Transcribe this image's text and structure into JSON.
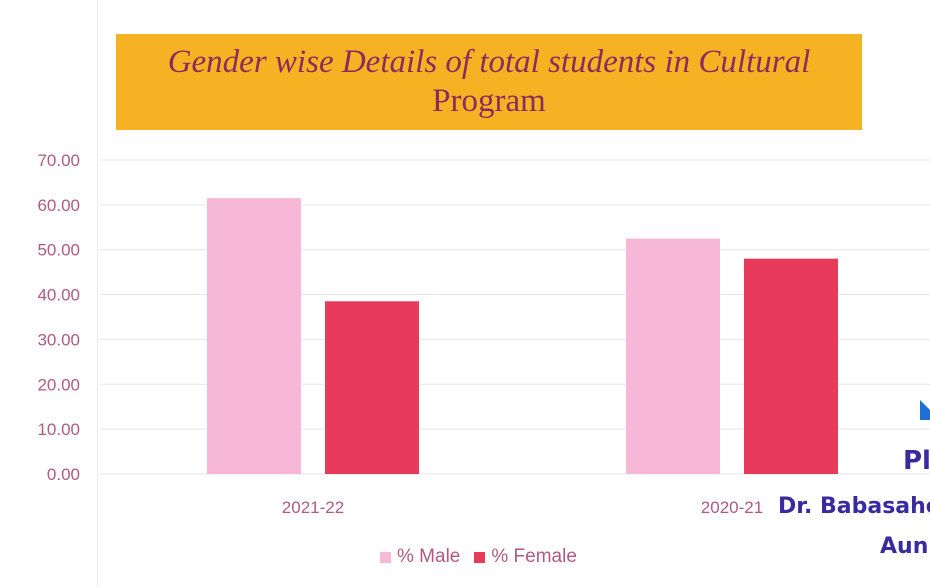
{
  "chart_data": {
    "type": "bar",
    "title": [
      "Gender wise Details of total students in Cultural",
      "Program"
    ],
    "categories": [
      "2021-22",
      "2020-21"
    ],
    "series": [
      {
        "name": "% Male",
        "values": [
          61.5,
          52.5
        ],
        "color": "#f7b8d8"
      },
      {
        "name": "% Female",
        "values": [
          38.5,
          48.0
        ],
        "color": "#e83b5c"
      }
    ],
    "ylim": [
      0,
      70
    ],
    "yticks": [
      "0.00",
      "10.00",
      "20.00",
      "30.00",
      "40.00",
      "50.00",
      "60.00",
      "70.00"
    ],
    "grid": true,
    "legend": "bottom"
  },
  "overlay_text": {
    "line1": "Pl",
    "line2": "Dr. Babasahe",
    "line3": "Aun"
  },
  "colors": {
    "title_bg": "#f5b324",
    "title_text": "#8c2c5c",
    "tick_text": "#b05a82",
    "overlay_text": "#3a2aa0",
    "overlay_accent": "#1f6fd6"
  }
}
